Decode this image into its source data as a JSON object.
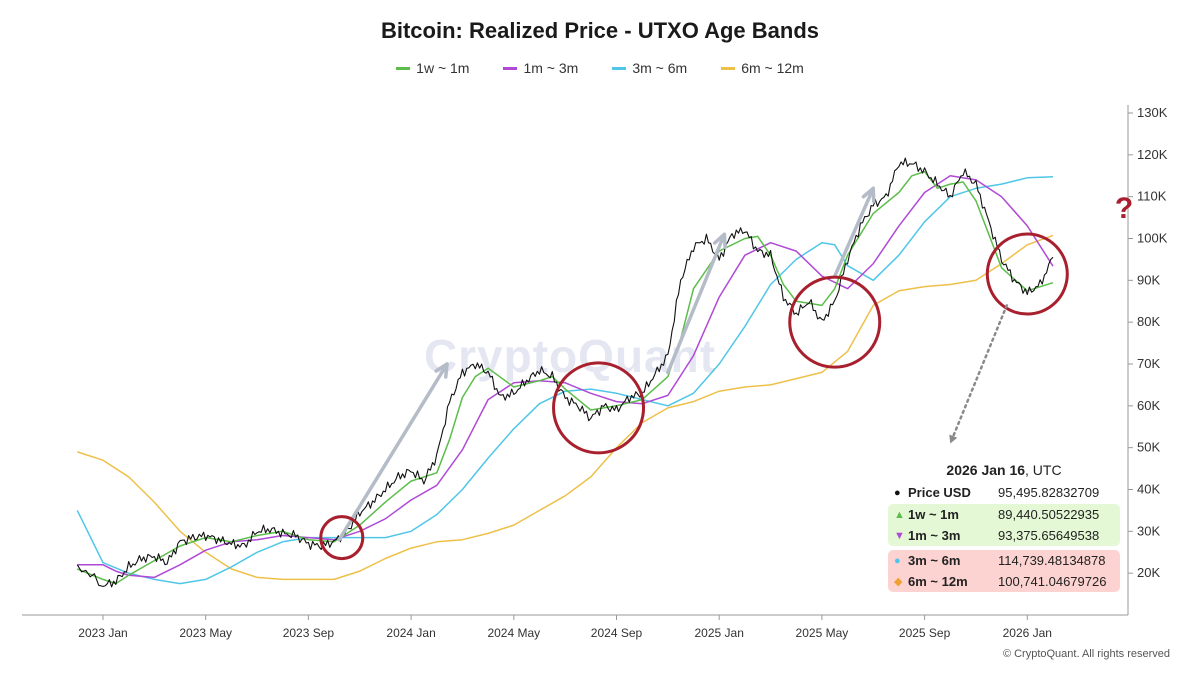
{
  "chart_data": {
    "type": "line",
    "title": "Bitcoin: Realized Price - UTXO Age Bands",
    "xlabel": "",
    "ylabel": "",
    "ylim": [
      10000,
      130000
    ],
    "x_ticks": [
      "2023 Jan",
      "2023 May",
      "2023 Sep",
      "2024 Jan",
      "2024 May",
      "2024 Sep",
      "2025 Jan",
      "2025 May",
      "2025 Sep",
      "2026 Jan"
    ],
    "y_ticks": [
      "20K",
      "30K",
      "40K",
      "50K",
      "60K",
      "70K",
      "80K",
      "90K",
      "100K",
      "110K",
      "120K",
      "130K"
    ],
    "x_range_months": [
      -1.0,
      37.3
    ],
    "grid": false,
    "legend_position": "top-center",
    "series": [
      {
        "name": "Price USD",
        "color": "#111111",
        "points": [
          [
            -1.0,
            22000
          ],
          [
            0.0,
            17000
          ],
          [
            0.5,
            18000
          ],
          [
            1.0,
            21500
          ],
          [
            1.5,
            23500
          ],
          [
            2.0,
            24000
          ],
          [
            2.5,
            22500
          ],
          [
            3.0,
            27500
          ],
          [
            3.5,
            28500
          ],
          [
            4.0,
            29000
          ],
          [
            4.5,
            28000
          ],
          [
            5.0,
            27000
          ],
          [
            5.5,
            26500
          ],
          [
            6.0,
            30000
          ],
          [
            6.5,
            30500
          ],
          [
            7.0,
            29500
          ],
          [
            7.5,
            29000
          ],
          [
            8.0,
            27000
          ],
          [
            8.5,
            26500
          ],
          [
            9.0,
            27500
          ],
          [
            9.5,
            30000
          ],
          [
            10.0,
            34500
          ],
          [
            10.5,
            37000
          ],
          [
            11.0,
            40000
          ],
          [
            11.5,
            43000
          ],
          [
            12.0,
            44500
          ],
          [
            12.5,
            42000
          ],
          [
            13.0,
            48000
          ],
          [
            13.5,
            61000
          ],
          [
            14.0,
            68000
          ],
          [
            14.5,
            70000
          ],
          [
            15.0,
            68000
          ],
          [
            15.5,
            62000
          ],
          [
            16.0,
            63000
          ],
          [
            16.5,
            66000
          ],
          [
            17.0,
            68500
          ],
          [
            17.5,
            67000
          ],
          [
            18.0,
            62000
          ],
          [
            18.5,
            60000
          ],
          [
            19.0,
            57000
          ],
          [
            19.5,
            60000
          ],
          [
            20.0,
            59000
          ],
          [
            20.5,
            62000
          ],
          [
            21.0,
            63000
          ],
          [
            21.5,
            67500
          ],
          [
            22.0,
            72000
          ],
          [
            22.5,
            90000
          ],
          [
            23.0,
            98000
          ],
          [
            23.5,
            100000
          ],
          [
            24.0,
            95000
          ],
          [
            24.5,
            101000
          ],
          [
            25.0,
            102000
          ],
          [
            25.5,
            97000
          ],
          [
            26.0,
            96000
          ],
          [
            26.5,
            86000
          ],
          [
            27.0,
            82000
          ],
          [
            27.5,
            85000
          ],
          [
            28.0,
            80000
          ],
          [
            28.5,
            85000
          ],
          [
            29.0,
            95000
          ],
          [
            29.5,
            103000
          ],
          [
            30.0,
            108000
          ],
          [
            30.5,
            110000
          ],
          [
            31.0,
            118000
          ],
          [
            31.5,
            118000
          ],
          [
            32.0,
            116000
          ],
          [
            32.5,
            113000
          ],
          [
            33.0,
            110000
          ],
          [
            33.5,
            116000
          ],
          [
            34.0,
            113000
          ],
          [
            34.5,
            104000
          ],
          [
            35.0,
            95000
          ],
          [
            35.5,
            90000
          ],
          [
            36.0,
            87000
          ],
          [
            36.5,
            89000
          ],
          [
            37.0,
            95500
          ]
        ]
      },
      {
        "name": "1w ~ 1m",
        "color": "#5cbd4a",
        "points": [
          [
            -1.0,
            21000
          ],
          [
            0.0,
            18500
          ],
          [
            0.5,
            17500
          ],
          [
            1.0,
            19500
          ],
          [
            2.0,
            23000
          ],
          [
            3.0,
            26500
          ],
          [
            4.0,
            28500
          ],
          [
            5.0,
            27500
          ],
          [
            6.0,
            29000
          ],
          [
            7.0,
            30000
          ],
          [
            8.0,
            28000
          ],
          [
            9.0,
            27500
          ],
          [
            10.0,
            31500
          ],
          [
            11.0,
            37000
          ],
          [
            12.0,
            42000
          ],
          [
            13.0,
            44000
          ],
          [
            13.5,
            52000
          ],
          [
            14.0,
            62000
          ],
          [
            14.5,
            67000
          ],
          [
            15.0,
            69000
          ],
          [
            16.0,
            64500
          ],
          [
            17.0,
            66000
          ],
          [
            17.5,
            67000
          ],
          [
            18.0,
            64000
          ],
          [
            19.0,
            59000
          ],
          [
            20.0,
            60000
          ],
          [
            21.0,
            61500
          ],
          [
            22.0,
            67000
          ],
          [
            22.5,
            76000
          ],
          [
            23.0,
            88000
          ],
          [
            24.0,
            97000
          ],
          [
            25.0,
            100000
          ],
          [
            25.5,
            100500
          ],
          [
            26.0,
            96000
          ],
          [
            26.5,
            89000
          ],
          [
            27.0,
            85000
          ],
          [
            28.0,
            84000
          ],
          [
            28.5,
            88000
          ],
          [
            29.0,
            96000
          ],
          [
            30.0,
            106000
          ],
          [
            31.0,
            111000
          ],
          [
            31.5,
            115000
          ],
          [
            32.0,
            116000
          ],
          [
            32.5,
            112000
          ],
          [
            33.0,
            113000
          ],
          [
            33.5,
            113500
          ],
          [
            34.0,
            109000
          ],
          [
            34.5,
            101000
          ],
          [
            35.0,
            93000
          ],
          [
            36.0,
            87500
          ],
          [
            37.0,
            89440
          ]
        ]
      },
      {
        "name": "1m ~ 3m",
        "color": "#b04ad6",
        "points": [
          [
            -1.0,
            22000
          ],
          [
            0.0,
            22000
          ],
          [
            0.5,
            20500
          ],
          [
            1.0,
            19500
          ],
          [
            2.0,
            19000
          ],
          [
            3.0,
            22000
          ],
          [
            4.0,
            25500
          ],
          [
            5.0,
            27500
          ],
          [
            6.0,
            28000
          ],
          [
            7.0,
            29000
          ],
          [
            8.0,
            28500
          ],
          [
            9.0,
            28000
          ],
          [
            10.0,
            30000
          ],
          [
            11.0,
            33000
          ],
          [
            12.0,
            37500
          ],
          [
            13.0,
            41000
          ],
          [
            14.0,
            49500
          ],
          [
            15.0,
            61500
          ],
          [
            16.0,
            65500
          ],
          [
            17.0,
            66000
          ],
          [
            18.0,
            65500
          ],
          [
            19.0,
            63000
          ],
          [
            20.0,
            61000
          ],
          [
            21.0,
            60500
          ],
          [
            22.0,
            62500
          ],
          [
            23.0,
            72000
          ],
          [
            24.0,
            86000
          ],
          [
            25.0,
            96000
          ],
          [
            26.0,
            99000
          ],
          [
            27.0,
            97000
          ],
          [
            28.0,
            91000
          ],
          [
            29.0,
            88000
          ],
          [
            30.0,
            94000
          ],
          [
            31.0,
            103000
          ],
          [
            32.0,
            111000
          ],
          [
            33.0,
            115000
          ],
          [
            34.0,
            114000
          ],
          [
            35.0,
            110000
          ],
          [
            36.0,
            103000
          ],
          [
            37.0,
            93376
          ]
        ]
      },
      {
        "name": "3m ~ 6m",
        "color": "#4fc6e8",
        "points": [
          [
            -1.0,
            35000
          ],
          [
            0.0,
            22500
          ],
          [
            1.0,
            20000
          ],
          [
            2.0,
            18500
          ],
          [
            3.0,
            17500
          ],
          [
            4.0,
            18500
          ],
          [
            5.0,
            21500
          ],
          [
            6.0,
            25000
          ],
          [
            7.0,
            27500
          ],
          [
            8.0,
            28500
          ],
          [
            9.0,
            28500
          ],
          [
            10.0,
            28500
          ],
          [
            11.0,
            28500
          ],
          [
            12.0,
            30000
          ],
          [
            13.0,
            34000
          ],
          [
            14.0,
            40000
          ],
          [
            15.0,
            47500
          ],
          [
            16.0,
            54500
          ],
          [
            17.0,
            60500
          ],
          [
            18.0,
            63500
          ],
          [
            19.0,
            64000
          ],
          [
            20.0,
            63000
          ],
          [
            21.0,
            61500
          ],
          [
            22.0,
            60000
          ],
          [
            23.0,
            63000
          ],
          [
            24.0,
            70000
          ],
          [
            25.0,
            79000
          ],
          [
            26.0,
            89000
          ],
          [
            27.0,
            95000
          ],
          [
            28.0,
            99000
          ],
          [
            28.5,
            98500
          ],
          [
            29.0,
            93500
          ],
          [
            30.0,
            90000
          ],
          [
            31.0,
            96000
          ],
          [
            32.0,
            104000
          ],
          [
            33.0,
            110000
          ],
          [
            34.0,
            112000
          ],
          [
            35.0,
            113000
          ],
          [
            36.0,
            114500
          ],
          [
            37.0,
            114739
          ]
        ]
      },
      {
        "name": "6m ~ 12m",
        "color": "#eec04a",
        "points": [
          [
            -1.0,
            49000
          ],
          [
            0.0,
            47000
          ],
          [
            1.0,
            43000
          ],
          [
            2.0,
            37000
          ],
          [
            3.0,
            30000
          ],
          [
            4.0,
            25000
          ],
          [
            5.0,
            21000
          ],
          [
            6.0,
            19000
          ],
          [
            7.0,
            18500
          ],
          [
            8.0,
            18500
          ],
          [
            9.0,
            18500
          ],
          [
            10.0,
            20500
          ],
          [
            11.0,
            23500
          ],
          [
            12.0,
            26000
          ],
          [
            13.0,
            27500
          ],
          [
            14.0,
            28000
          ],
          [
            15.0,
            29500
          ],
          [
            16.0,
            31500
          ],
          [
            17.0,
            35000
          ],
          [
            18.0,
            38500
          ],
          [
            19.0,
            43000
          ],
          [
            20.0,
            50000
          ],
          [
            21.0,
            56000
          ],
          [
            22.0,
            59500
          ],
          [
            23.0,
            61000
          ],
          [
            24.0,
            63500
          ],
          [
            25.0,
            64500
          ],
          [
            26.0,
            65000
          ],
          [
            27.0,
            66500
          ],
          [
            28.0,
            68000
          ],
          [
            29.0,
            73000
          ],
          [
            30.0,
            84000
          ],
          [
            31.0,
            87500
          ],
          [
            32.0,
            88500
          ],
          [
            33.0,
            89000
          ],
          [
            34.0,
            90000
          ],
          [
            35.0,
            94000
          ],
          [
            36.0,
            98500
          ],
          [
            37.0,
            100741
          ]
        ]
      }
    ],
    "annotations": {
      "arrows": [
        [
          [
            9.2,
            28000
          ],
          [
            13.4,
            70000
          ]
        ],
        [
          [
            22.0,
            68000
          ],
          [
            24.2,
            101000
          ]
        ],
        [
          [
            28.5,
            91000
          ],
          [
            30.0,
            112000
          ]
        ]
      ],
      "circles": [
        [
          9.3,
          28500
        ],
        [
          19.3,
          59500
        ],
        [
          28.5,
          80000
        ],
        [
          36.0,
          91500
        ]
      ],
      "question_mark": "?",
      "dotted_arrow": [
        [
          35.2,
          84000
        ],
        [
          33.0,
          51000
        ]
      ]
    },
    "tooltip": {
      "date": "2026 Jan 16",
      "tz": ", UTC",
      "rows": [
        {
          "marker": "●",
          "marker_color": "#111111",
          "name": "Price USD",
          "value": "95,495.82832709"
        },
        {
          "marker": "▲",
          "marker_color": "#5cbd4a",
          "name": "1w ~ 1m",
          "value": "89,440.50522935"
        },
        {
          "marker": "▼",
          "marker_color": "#b04ad6",
          "name": "1m ~ 3m",
          "value": "93,375.65649538"
        },
        {
          "marker": "●",
          "marker_color": "#4fc6e8",
          "name": "3m ~ 6m",
          "value": "114,739.48134878"
        },
        {
          "marker": "◆",
          "marker_color": "#f0a030",
          "name": "6m ~ 12m",
          "value": "100,741.04679726"
        }
      ]
    }
  },
  "legend": [
    {
      "label": "1w ~ 1m",
      "color": "#5cbd4a"
    },
    {
      "label": "1m ~ 3m",
      "color": "#b04ad6"
    },
    {
      "label": "3m ~ 6m",
      "color": "#4fc6e8"
    },
    {
      "label": "6m ~ 12m",
      "color": "#eec04a"
    }
  ],
  "watermark": "CryptoQuant",
  "copyright": "© CryptoQuant. All rights reserved",
  "colors": {
    "annotation_red": "#a8202e",
    "arrow_gray": "#b4bcc8"
  }
}
